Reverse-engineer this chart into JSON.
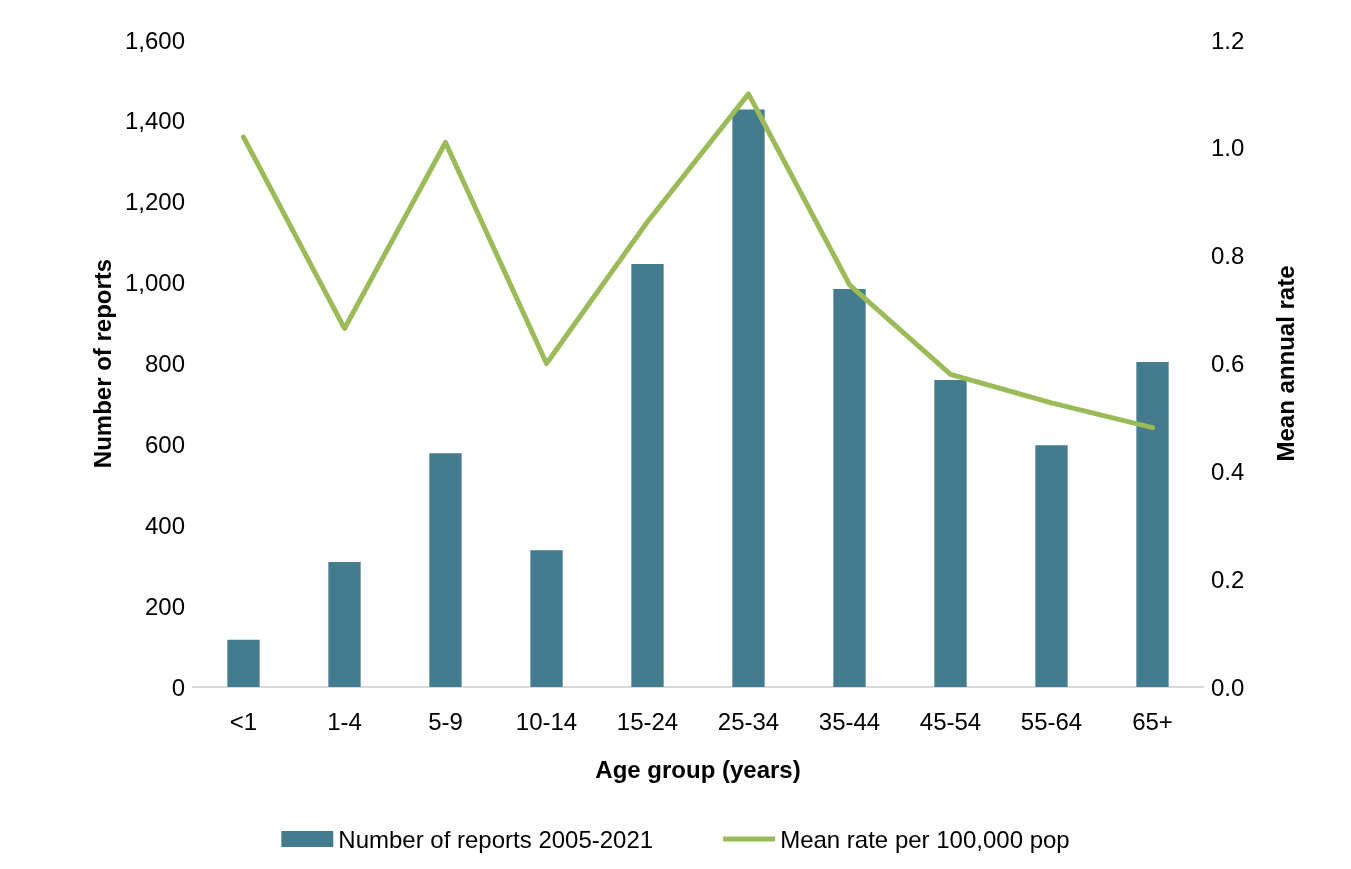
{
  "chart_data": {
    "type": "bar",
    "xlabel": "Age group (years)",
    "ylabel": "Number of reports",
    "y2label": "Mean annual rate",
    "categories": [
      "<1",
      "1-4",
      "5-9",
      "10-14",
      "15-24",
      "25-34",
      "35-44",
      "45-54",
      "55-64",
      "65+"
    ],
    "series": [
      {
        "name": "Number of reports 2005-2021",
        "color": "#447b8f",
        "values": [
          117,
          309,
          578,
          338,
          1046,
          1428,
          984,
          759,
          598,
          804
        ]
      },
      {
        "name": "Mean rate per 100,000 pop",
        "color": "#9bbb59",
        "type": "line",
        "axis": "y2",
        "values": [
          1.02,
          0.665,
          1.01,
          0.6,
          0.863,
          1.1,
          0.746,
          0.58,
          0.527,
          0.481
        ]
      }
    ],
    "ylim": [
      0,
      1600
    ],
    "yticks": [
      {
        "value": 0,
        "label": "0"
      },
      {
        "value": 200,
        "label": "200"
      },
      {
        "value": 400,
        "label": "400"
      },
      {
        "value": 600,
        "label": "600"
      },
      {
        "value": 800,
        "label": "800"
      },
      {
        "value": 1000,
        "label": "1,000"
      },
      {
        "value": 1200,
        "label": "1,200"
      },
      {
        "value": 1400,
        "label": "1,400"
      },
      {
        "value": 1600,
        "label": "1,600"
      }
    ],
    "y2lim": [
      0,
      1.2
    ],
    "y2ticks": [
      {
        "value": 0,
        "label": "0.0"
      },
      {
        "value": 0.2,
        "label": "0.2"
      },
      {
        "value": 0.4,
        "label": "0.4"
      },
      {
        "value": 0.6,
        "label": "0.6"
      },
      {
        "value": 0.8,
        "label": "0.8"
      },
      {
        "value": 1,
        "label": "1.0"
      },
      {
        "value": 1.2,
        "label": "1.2"
      }
    ],
    "grid": false,
    "legend": "bottom",
    "marker": "none",
    "line_style": "solid"
  }
}
